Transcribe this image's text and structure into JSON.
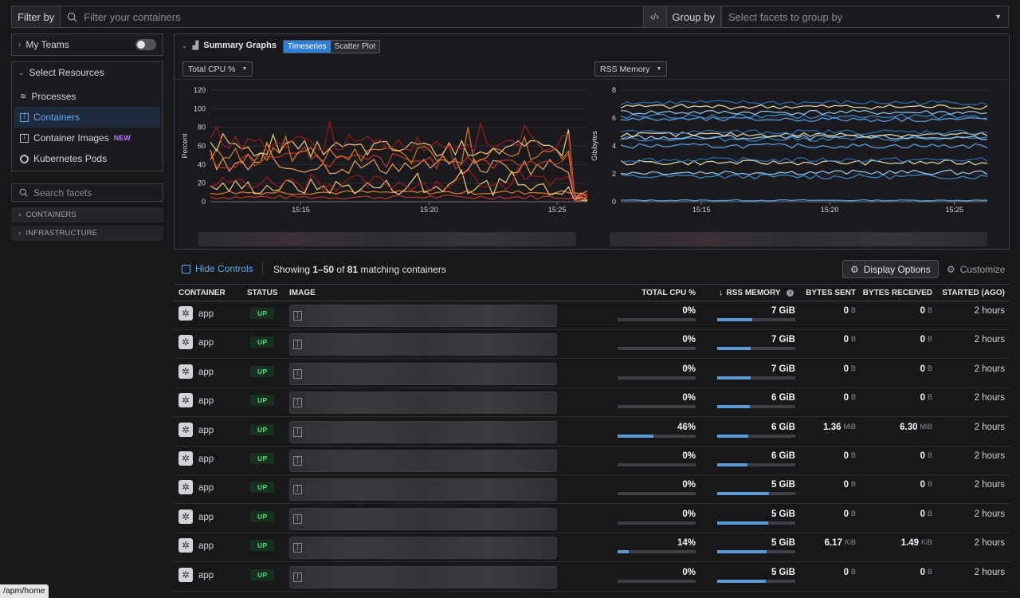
{
  "filter": {
    "label": "Filter by",
    "placeholder": "Filter your containers"
  },
  "group": {
    "label": "Group by",
    "placeholder": "Select facets to group by"
  },
  "sidebar": {
    "my_teams": "My Teams",
    "select_resources": "Select Resources",
    "items": [
      {
        "label": "Processes",
        "icon": "processes-icon"
      },
      {
        "label": "Containers",
        "icon": "containers-icon",
        "active": true
      },
      {
        "label": "Container Images",
        "icon": "container-images-icon",
        "badge": "NEW"
      },
      {
        "label": "Kubernetes Pods",
        "icon": "kubernetes-pods-icon"
      }
    ],
    "search_placeholder": "Search facets",
    "facets": [
      "CONTAINERS",
      "INFRASTRUCTURE"
    ]
  },
  "graphs": {
    "title": "Summary Graphs",
    "tabs": [
      "Timeseries",
      "Scatter Plot"
    ],
    "left_metric": "Total CPU %",
    "right_metric": "RSS Memory"
  },
  "chart_data": [
    {
      "type": "line",
      "ylabel": "Percent",
      "yticks": [
        "0",
        "20",
        "40",
        "60",
        "80",
        "100",
        "120"
      ],
      "ylim": [
        0,
        120
      ],
      "xticks": [
        "15:15",
        "15:20",
        "15:25"
      ],
      "series_levels": [
        5,
        10,
        16,
        20,
        38,
        44,
        50,
        57,
        63
      ],
      "colors": [
        "#c0392b",
        "#e67e22",
        "#f5d27a",
        "#a31a1a",
        "#f0a35e"
      ]
    },
    {
      "type": "line",
      "ylabel": "Gibibytes",
      "yticks": [
        "0",
        "2",
        "4",
        "6",
        "8"
      ],
      "ylim": [
        0,
        8
      ],
      "xticks": [
        "15:15",
        "15:20",
        "15:25"
      ],
      "series_levels": [
        0.1,
        1.8,
        2.1,
        2.8,
        3.0,
        4.0,
        4.5,
        4.6,
        4.8,
        5.0,
        5.9,
        6.1,
        6.4,
        6.8,
        7.1
      ],
      "colors": [
        "#5fa8ee",
        "#3a8fd6",
        "#9fd0f5",
        "#f5e6b0",
        "#2a73b8"
      ]
    }
  ],
  "controls": {
    "hide_controls": "Hide Controls",
    "showing_prefix": "Showing ",
    "showing_range": "1–50",
    "showing_of": " of ",
    "showing_count": "81",
    "showing_suffix": " matching containers",
    "display_options": "Display Options",
    "customize": "Customize"
  },
  "table": {
    "headers": [
      "CONTAINER",
      "STATUS",
      "IMAGE",
      "TOTAL CPU %",
      "RSS MEMORY",
      "BYTES SENT",
      "BYTES RECEIVED",
      "STARTED (AGO)"
    ],
    "rows": [
      {
        "name": "app",
        "status": "UP",
        "cpu": "0%",
        "cpu_frac": 0,
        "mem": "7 GiB",
        "mem_frac": 0.45,
        "sent": "0",
        "sent_unit": "B",
        "recv": "0",
        "recv_unit": "B",
        "started": "2 hours"
      },
      {
        "name": "app",
        "status": "UP",
        "cpu": "0%",
        "cpu_frac": 0,
        "mem": "7 GiB",
        "mem_frac": 0.43,
        "sent": "0",
        "sent_unit": "B",
        "recv": "0",
        "recv_unit": "B",
        "started": "2 hours"
      },
      {
        "name": "app",
        "status": "UP",
        "cpu": "0%",
        "cpu_frac": 0,
        "mem": "7 GiB",
        "mem_frac": 0.43,
        "sent": "0",
        "sent_unit": "B",
        "recv": "0",
        "recv_unit": "B",
        "started": "2 hours"
      },
      {
        "name": "app",
        "status": "UP",
        "cpu": "0%",
        "cpu_frac": 0,
        "mem": "6 GiB",
        "mem_frac": 0.42,
        "sent": "0",
        "sent_unit": "B",
        "recv": "0",
        "recv_unit": "B",
        "started": "2 hours"
      },
      {
        "name": "app",
        "status": "UP",
        "cpu": "46%",
        "cpu_frac": 0.46,
        "mem": "6 GiB",
        "mem_frac": 0.4,
        "sent": "1.36",
        "sent_unit": "MiB",
        "recv": "6.30",
        "recv_unit": "MiB",
        "started": "2 hours"
      },
      {
        "name": "app",
        "status": "UP",
        "cpu": "0%",
        "cpu_frac": 0,
        "mem": "6 GiB",
        "mem_frac": 0.39,
        "sent": "0",
        "sent_unit": "B",
        "recv": "0",
        "recv_unit": "B",
        "started": "2 hours"
      },
      {
        "name": "app",
        "status": "UP",
        "cpu": "0%",
        "cpu_frac": 0,
        "mem": "5 GiB",
        "mem_frac": 0.66,
        "sent": "0",
        "sent_unit": "B",
        "recv": "0",
        "recv_unit": "B",
        "started": "2 hours"
      },
      {
        "name": "app",
        "status": "UP",
        "cpu": "0%",
        "cpu_frac": 0,
        "mem": "5 GiB",
        "mem_frac": 0.65,
        "sent": "0",
        "sent_unit": "B",
        "recv": "0",
        "recv_unit": "B",
        "started": "2 hours"
      },
      {
        "name": "app",
        "status": "UP",
        "cpu": "14%",
        "cpu_frac": 0.14,
        "mem": "5 GiB",
        "mem_frac": 0.63,
        "sent": "6.17",
        "sent_unit": "KiB",
        "recv": "1.49",
        "recv_unit": "KiB",
        "started": "2 hours"
      },
      {
        "name": "app",
        "status": "UP",
        "cpu": "0%",
        "cpu_frac": 0,
        "mem": "5 GiB",
        "mem_frac": 0.62,
        "sent": "0",
        "sent_unit": "B",
        "recv": "0",
        "recv_unit": "B",
        "started": "2 hours"
      }
    ]
  },
  "status_url": "/apm/home"
}
